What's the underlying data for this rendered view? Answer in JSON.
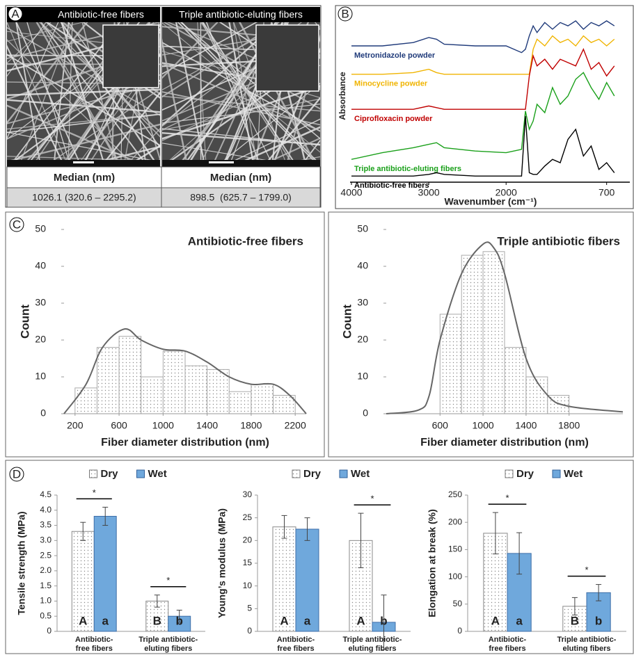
{
  "panel_labels": [
    "A",
    "B",
    "C",
    "D"
  ],
  "sem": {
    "titles": [
      "Antibiotic-free fibers",
      "Triple antibiotic-eluting fibers"
    ],
    "table": {
      "header": [
        "Median (nm)",
        "Median (nm)"
      ],
      "row": [
        "1026.1 (320.6 – 2295.2)",
        "898.5  (625.7 – 1799.0)"
      ]
    }
  },
  "chart_data": [
    {
      "type": "spectra",
      "xlabel": "Wavenumber (cm⁻¹)",
      "ylabel": "Absorbance",
      "xlim": [
        4000,
        400
      ],
      "xticks": [
        4000,
        3000,
        2000,
        700
      ],
      "ylim": [
        0,
        100
      ],
      "x": [
        4000,
        3600,
        3200,
        3000,
        2900,
        2800,
        2400,
        2000,
        1800,
        1750,
        1700,
        1650,
        1600,
        1500,
        1400,
        1300,
        1200,
        1100,
        1000,
        900,
        800,
        700,
        600
      ],
      "series": [
        {
          "name": "Metronidazole powder",
          "color": "#1f3a7a",
          "values": [
            80,
            80,
            82,
            85,
            84,
            81,
            80,
            80,
            76,
            78,
            86,
            92,
            88,
            94,
            90,
            94,
            92,
            95,
            90,
            94,
            92,
            95,
            92
          ]
        },
        {
          "name": "Minocycline powder",
          "color": "#f0b400",
          "values": [
            63,
            63,
            64,
            66,
            64,
            63,
            63,
            63,
            63,
            63,
            63,
            78,
            84,
            80,
            86,
            82,
            84,
            80,
            86,
            82,
            84,
            80,
            84
          ]
        },
        {
          "name": "Ciprofloxacin powder",
          "color": "#c00000",
          "values": [
            42,
            42,
            42,
            44,
            43,
            42,
            42,
            42,
            42,
            42,
            62,
            74,
            68,
            72,
            66,
            72,
            70,
            68,
            78,
            66,
            70,
            62,
            68
          ]
        },
        {
          "name": "Triple antibiotic-eluting fibers",
          "color": "#1aa01a",
          "values": [
            12,
            16,
            19,
            21,
            22,
            19,
            17,
            16,
            18,
            41,
            30,
            35,
            45,
            40,
            55,
            45,
            50,
            60,
            64,
            55,
            48,
            58,
            50
          ]
        },
        {
          "name": "Antibiotic-free fibers",
          "color": "#000000",
          "values": [
            2,
            2,
            2,
            3,
            4,
            3,
            2,
            2,
            2,
            38,
            4,
            3,
            3,
            8,
            12,
            10,
            24,
            30,
            14,
            20,
            6,
            10,
            4
          ]
        }
      ]
    },
    {
      "type": "histogram",
      "title": "Antibiotic-free fibers",
      "xlabel": "Fiber diameter distribution (nm)",
      "ylabel": "Count",
      "bins": [
        200,
        400,
        600,
        800,
        1000,
        1200,
        1400,
        1600,
        1800,
        2000,
        2200
      ],
      "counts": [
        7,
        18,
        21,
        10,
        17,
        13,
        12,
        6,
        8,
        5
      ],
      "xlim": [
        100,
        2300
      ],
      "xticks": [
        200,
        600,
        1000,
        1400,
        1800,
        2200
      ],
      "ylim": [
        0,
        50
      ],
      "yticks": [
        0,
        10,
        20,
        30,
        40,
        50
      ],
      "curve": {
        "x": [
          100,
          300,
          450,
          650,
          800,
          1000,
          1200,
          1400,
          1600,
          1800,
          2000,
          2150,
          2300
        ],
        "values": [
          0,
          8,
          18,
          23,
          20,
          17.5,
          17,
          14,
          10,
          8,
          8,
          5,
          0
        ]
      }
    },
    {
      "type": "histogram",
      "title": "Triple antibiotic fibers",
      "xlabel": "Fiber diameter distribution (nm)",
      "ylabel": "Count",
      "bins": [
        600,
        800,
        1000,
        1200,
        1400,
        1600,
        1800
      ],
      "counts": [
        27,
        43,
        44,
        18,
        10,
        5
      ],
      "xlim": [
        100,
        2300
      ],
      "xticks": [
        600,
        1000,
        1400,
        1800
      ],
      "ylim": [
        0,
        50
      ],
      "yticks": [
        0,
        10,
        20,
        30,
        40,
        50
      ],
      "curve": {
        "x": [
          100,
          400,
          500,
          600,
          800,
          1000,
          1100,
          1200,
          1400,
          1600,
          1800,
          2300
        ],
        "values": [
          0,
          1,
          5,
          20,
          38,
          46,
          45,
          38,
          15,
          5,
          2,
          0.5
        ]
      }
    },
    {
      "type": "grouped-bar",
      "ylabel": "Tensile strength (MPa)",
      "categories": [
        [
          "Antibiotic-",
          "free fibers"
        ],
        [
          "Triple antibiotic-",
          "eluting fibers"
        ]
      ],
      "ylim": [
        0,
        4.5
      ],
      "yticks": [
        0,
        0.5,
        {
          "value": 1,
          "label": "1.0"
        },
        1.5,
        {
          "value": 2,
          "label": "2.0"
        },
        2.5,
        {
          "value": 3,
          "label": "3.0"
        },
        3.5,
        {
          "value": 4,
          "label": "4.0"
        },
        4.5
      ],
      "significance": [
        "*",
        "*"
      ],
      "series": [
        {
          "name": "Dry",
          "color": "#ffffff",
          "values": [
            3.3,
            1.0
          ],
          "errors": [
            0.3,
            0.2
          ],
          "letters": [
            "A",
            "B"
          ]
        },
        {
          "name": "Wet",
          "color": "#6fa8dc",
          "values": [
            3.8,
            0.5
          ],
          "errors": [
            0.3,
            0.2
          ],
          "letters": [
            "a",
            "b"
          ]
        }
      ]
    },
    {
      "type": "grouped-bar",
      "ylabel": "Young’s modulus (MPa)",
      "categories": [
        [
          "Antibiotic-",
          "free fibers"
        ],
        [
          "Triple antibiotic-",
          "eluting fibers"
        ]
      ],
      "ylim": [
        0,
        30
      ],
      "yticks": [
        0,
        5,
        10,
        15,
        20,
        25,
        30
      ],
      "significance": [
        null,
        "*"
      ],
      "series": [
        {
          "name": "Dry",
          "color": "#ffffff",
          "values": [
            23,
            20
          ],
          "errors": [
            2.5,
            6
          ],
          "letters": [
            "A",
            "A"
          ]
        },
        {
          "name": "Wet",
          "color": "#6fa8dc",
          "values": [
            22.5,
            2
          ],
          "errors": [
            2.5,
            6
          ],
          "letters": [
            "a",
            "b"
          ]
        }
      ]
    },
    {
      "type": "grouped-bar",
      "ylabel": "Elongation at break (%)",
      "categories": [
        [
          "Antibiotic-",
          "free fibers"
        ],
        [
          "Triple antibiotic-",
          "eluting fibers"
        ]
      ],
      "ylim": [
        0,
        250
      ],
      "yticks": [
        0,
        50,
        100,
        150,
        200,
        250
      ],
      "significance": [
        "*",
        "*"
      ],
      "series": [
        {
          "name": "Dry",
          "color": "#ffffff",
          "values": [
            180,
            46
          ],
          "errors": [
            38,
            16
          ],
          "letters": [
            "A",
            "B"
          ]
        },
        {
          "name": "Wet",
          "color": "#6fa8dc",
          "values": [
            143,
            71
          ],
          "errors": [
            38,
            15
          ],
          "letters": [
            "a",
            "b"
          ]
        }
      ]
    }
  ]
}
